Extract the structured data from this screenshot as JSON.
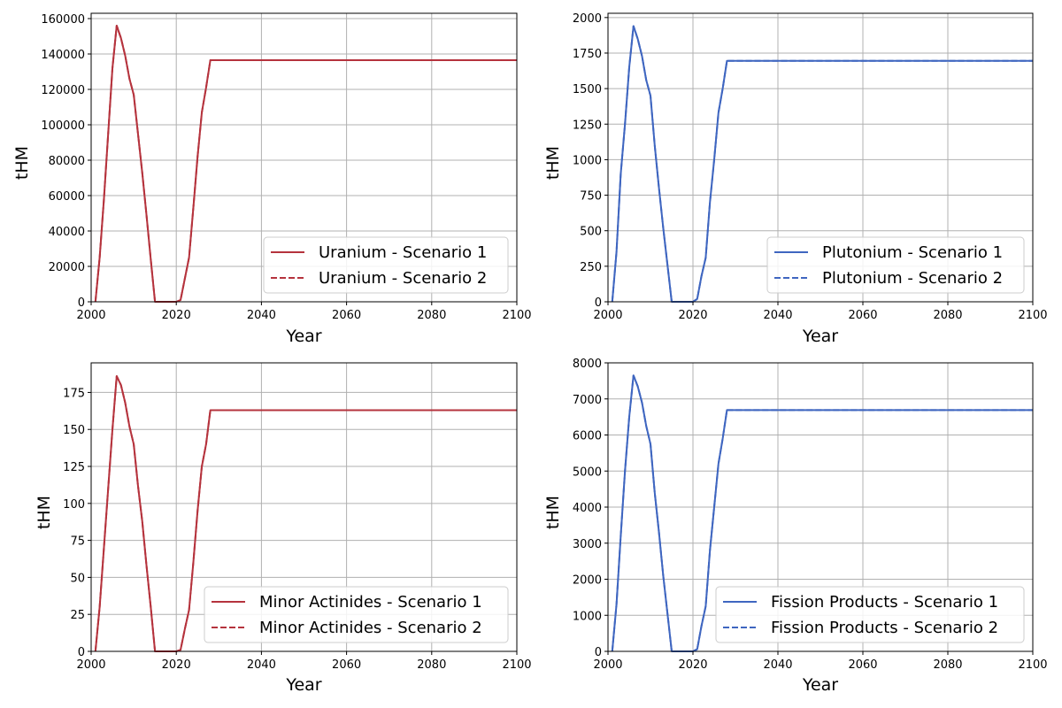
{
  "chart_data": [
    {
      "type": "line",
      "xlabel": "Year",
      "ylabel": "tHM",
      "xlim": [
        2000,
        2100
      ],
      "ylim": [
        0,
        163000
      ],
      "xticks": [
        2000,
        2020,
        2040,
        2060,
        2080,
        2100
      ],
      "yticks": [
        0,
        20000,
        40000,
        60000,
        80000,
        100000,
        120000,
        140000,
        160000
      ],
      "grid": true,
      "legend_position": "lower-right",
      "color": "#b5333d",
      "x": [
        2001,
        2002,
        2003,
        2004,
        2005,
        2006,
        2007,
        2008,
        2009,
        2010,
        2011,
        2012,
        2013,
        2014,
        2015,
        2016,
        2017,
        2018,
        2019,
        2020,
        2021,
        2022,
        2023,
        2024,
        2025,
        2026,
        2027,
        2028,
        2100
      ],
      "series": [
        {
          "name": "Uranium - Scenario 1",
          "style": "solid",
          "values": [
            0,
            25000,
            58000,
            95000,
            132000,
            156000,
            149000,
            139000,
            126000,
            117000,
            95000,
            73000,
            49000,
            24000,
            0,
            0,
            0,
            0,
            0,
            0,
            1000,
            13000,
            25000,
            53000,
            82000,
            107000,
            121000,
            136500,
            136500
          ]
        },
        {
          "name": "Uranium - Scenario 2",
          "style": "dashed",
          "values": [
            0,
            25000,
            58000,
            95000,
            132000,
            156000,
            149000,
            139000,
            126000,
            117000,
            95000,
            73000,
            49000,
            24000,
            0,
            0,
            0,
            0,
            0,
            0,
            1000,
            13000,
            25000,
            53000,
            82000,
            107000,
            121000,
            136500,
            136500
          ]
        }
      ]
    },
    {
      "type": "line",
      "xlabel": "Year",
      "ylabel": "tHM",
      "xlim": [
        2000,
        2100
      ],
      "ylim": [
        0,
        2030
      ],
      "xticks": [
        2000,
        2020,
        2040,
        2060,
        2080,
        2100
      ],
      "yticks": [
        0,
        250,
        500,
        750,
        1000,
        1250,
        1500,
        1750,
        2000
      ],
      "grid": true,
      "legend_position": "lower-right",
      "color": "#3f66c0",
      "x": [
        2001,
        2002,
        2003,
        2004,
        2005,
        2006,
        2007,
        2008,
        2009,
        2010,
        2011,
        2012,
        2013,
        2014,
        2015,
        2016,
        2017,
        2018,
        2019,
        2020,
        2021,
        2022,
        2023,
        2024,
        2025,
        2026,
        2027,
        2028,
        2100
      ],
      "series": [
        {
          "name": "Plutonium - Scenario 1",
          "style": "solid",
          "values": [
            0,
            350,
            900,
            1250,
            1650,
            1940,
            1850,
            1730,
            1560,
            1450,
            1100,
            800,
            520,
            260,
            0,
            0,
            0,
            0,
            0,
            0,
            20,
            180,
            310,
            700,
            1000,
            1330,
            1500,
            1695,
            1695
          ]
        },
        {
          "name": "Plutonium - Scenario 2",
          "style": "dashed",
          "values": [
            0,
            350,
            900,
            1250,
            1650,
            1940,
            1850,
            1730,
            1560,
            1450,
            1100,
            800,
            520,
            260,
            0,
            0,
            0,
            0,
            0,
            0,
            20,
            180,
            310,
            700,
            1000,
            1330,
            1500,
            1695,
            1695
          ]
        }
      ]
    },
    {
      "type": "line",
      "xlabel": "Year",
      "ylabel": "tHM",
      "xlim": [
        2000,
        2100
      ],
      "ylim": [
        0,
        195
      ],
      "xticks": [
        2000,
        2020,
        2040,
        2060,
        2080,
        2100
      ],
      "yticks": [
        0,
        25,
        50,
        75,
        100,
        125,
        150,
        175
      ],
      "grid": true,
      "legend_position": "lower-right",
      "color": "#b5333d",
      "x": [
        2001,
        2002,
        2003,
        2004,
        2005,
        2006,
        2007,
        2008,
        2009,
        2010,
        2011,
        2012,
        2013,
        2014,
        2015,
        2016,
        2017,
        2018,
        2019,
        2020,
        2021,
        2022,
        2023,
        2024,
        2025,
        2026,
        2027,
        2028,
        2100
      ],
      "series": [
        {
          "name": "Minor Actinides - Scenario 1",
          "style": "solid",
          "values": [
            0,
            30,
            70,
            110,
            150,
            186,
            180,
            168,
            152,
            140,
            112,
            88,
            58,
            30,
            0,
            0,
            0,
            0,
            0,
            0,
            1,
            15,
            28,
            60,
            95,
            125,
            140,
            163,
            163
          ]
        },
        {
          "name": "Minor Actinides - Scenario 2",
          "style": "dashed",
          "values": [
            0,
            30,
            70,
            110,
            150,
            186,
            180,
            168,
            152,
            140,
            112,
            88,
            58,
            30,
            0,
            0,
            0,
            0,
            0,
            0,
            1,
            15,
            28,
            60,
            95,
            125,
            140,
            163,
            163
          ]
        }
      ]
    },
    {
      "type": "line",
      "xlabel": "Year",
      "ylabel": "tHM",
      "xlim": [
        2000,
        2100
      ],
      "ylim": [
        0,
        8000
      ],
      "xticks": [
        2000,
        2020,
        2040,
        2060,
        2080,
        2100
      ],
      "yticks": [
        0,
        1000,
        2000,
        3000,
        4000,
        5000,
        6000,
        7000,
        8000
      ],
      "grid": true,
      "legend_position": "lower-right",
      "color": "#3f66c0",
      "x": [
        2001,
        2002,
        2003,
        2004,
        2005,
        2006,
        2007,
        2008,
        2009,
        2010,
        2011,
        2012,
        2013,
        2014,
        2015,
        2016,
        2017,
        2018,
        2019,
        2020,
        2021,
        2022,
        2023,
        2024,
        2025,
        2026,
        2027,
        2028,
        2100
      ],
      "series": [
        {
          "name": "Fission Products - Scenario 1",
          "style": "solid",
          "values": [
            0,
            1300,
            3200,
            5000,
            6500,
            7650,
            7350,
            6900,
            6250,
            5750,
            4400,
            3300,
            2100,
            1050,
            0,
            0,
            0,
            0,
            0,
            0,
            60,
            700,
            1250,
            2800,
            4000,
            5200,
            5900,
            6690,
            6690
          ]
        },
        {
          "name": "Fission Products - Scenario 2",
          "style": "dashed",
          "values": [
            0,
            1300,
            3200,
            5000,
            6500,
            7650,
            7350,
            6900,
            6250,
            5750,
            4400,
            3300,
            2100,
            1050,
            0,
            0,
            0,
            0,
            0,
            0,
            60,
            700,
            1250,
            2800,
            4000,
            5200,
            5900,
            6690,
            6690
          ]
        }
      ]
    }
  ]
}
